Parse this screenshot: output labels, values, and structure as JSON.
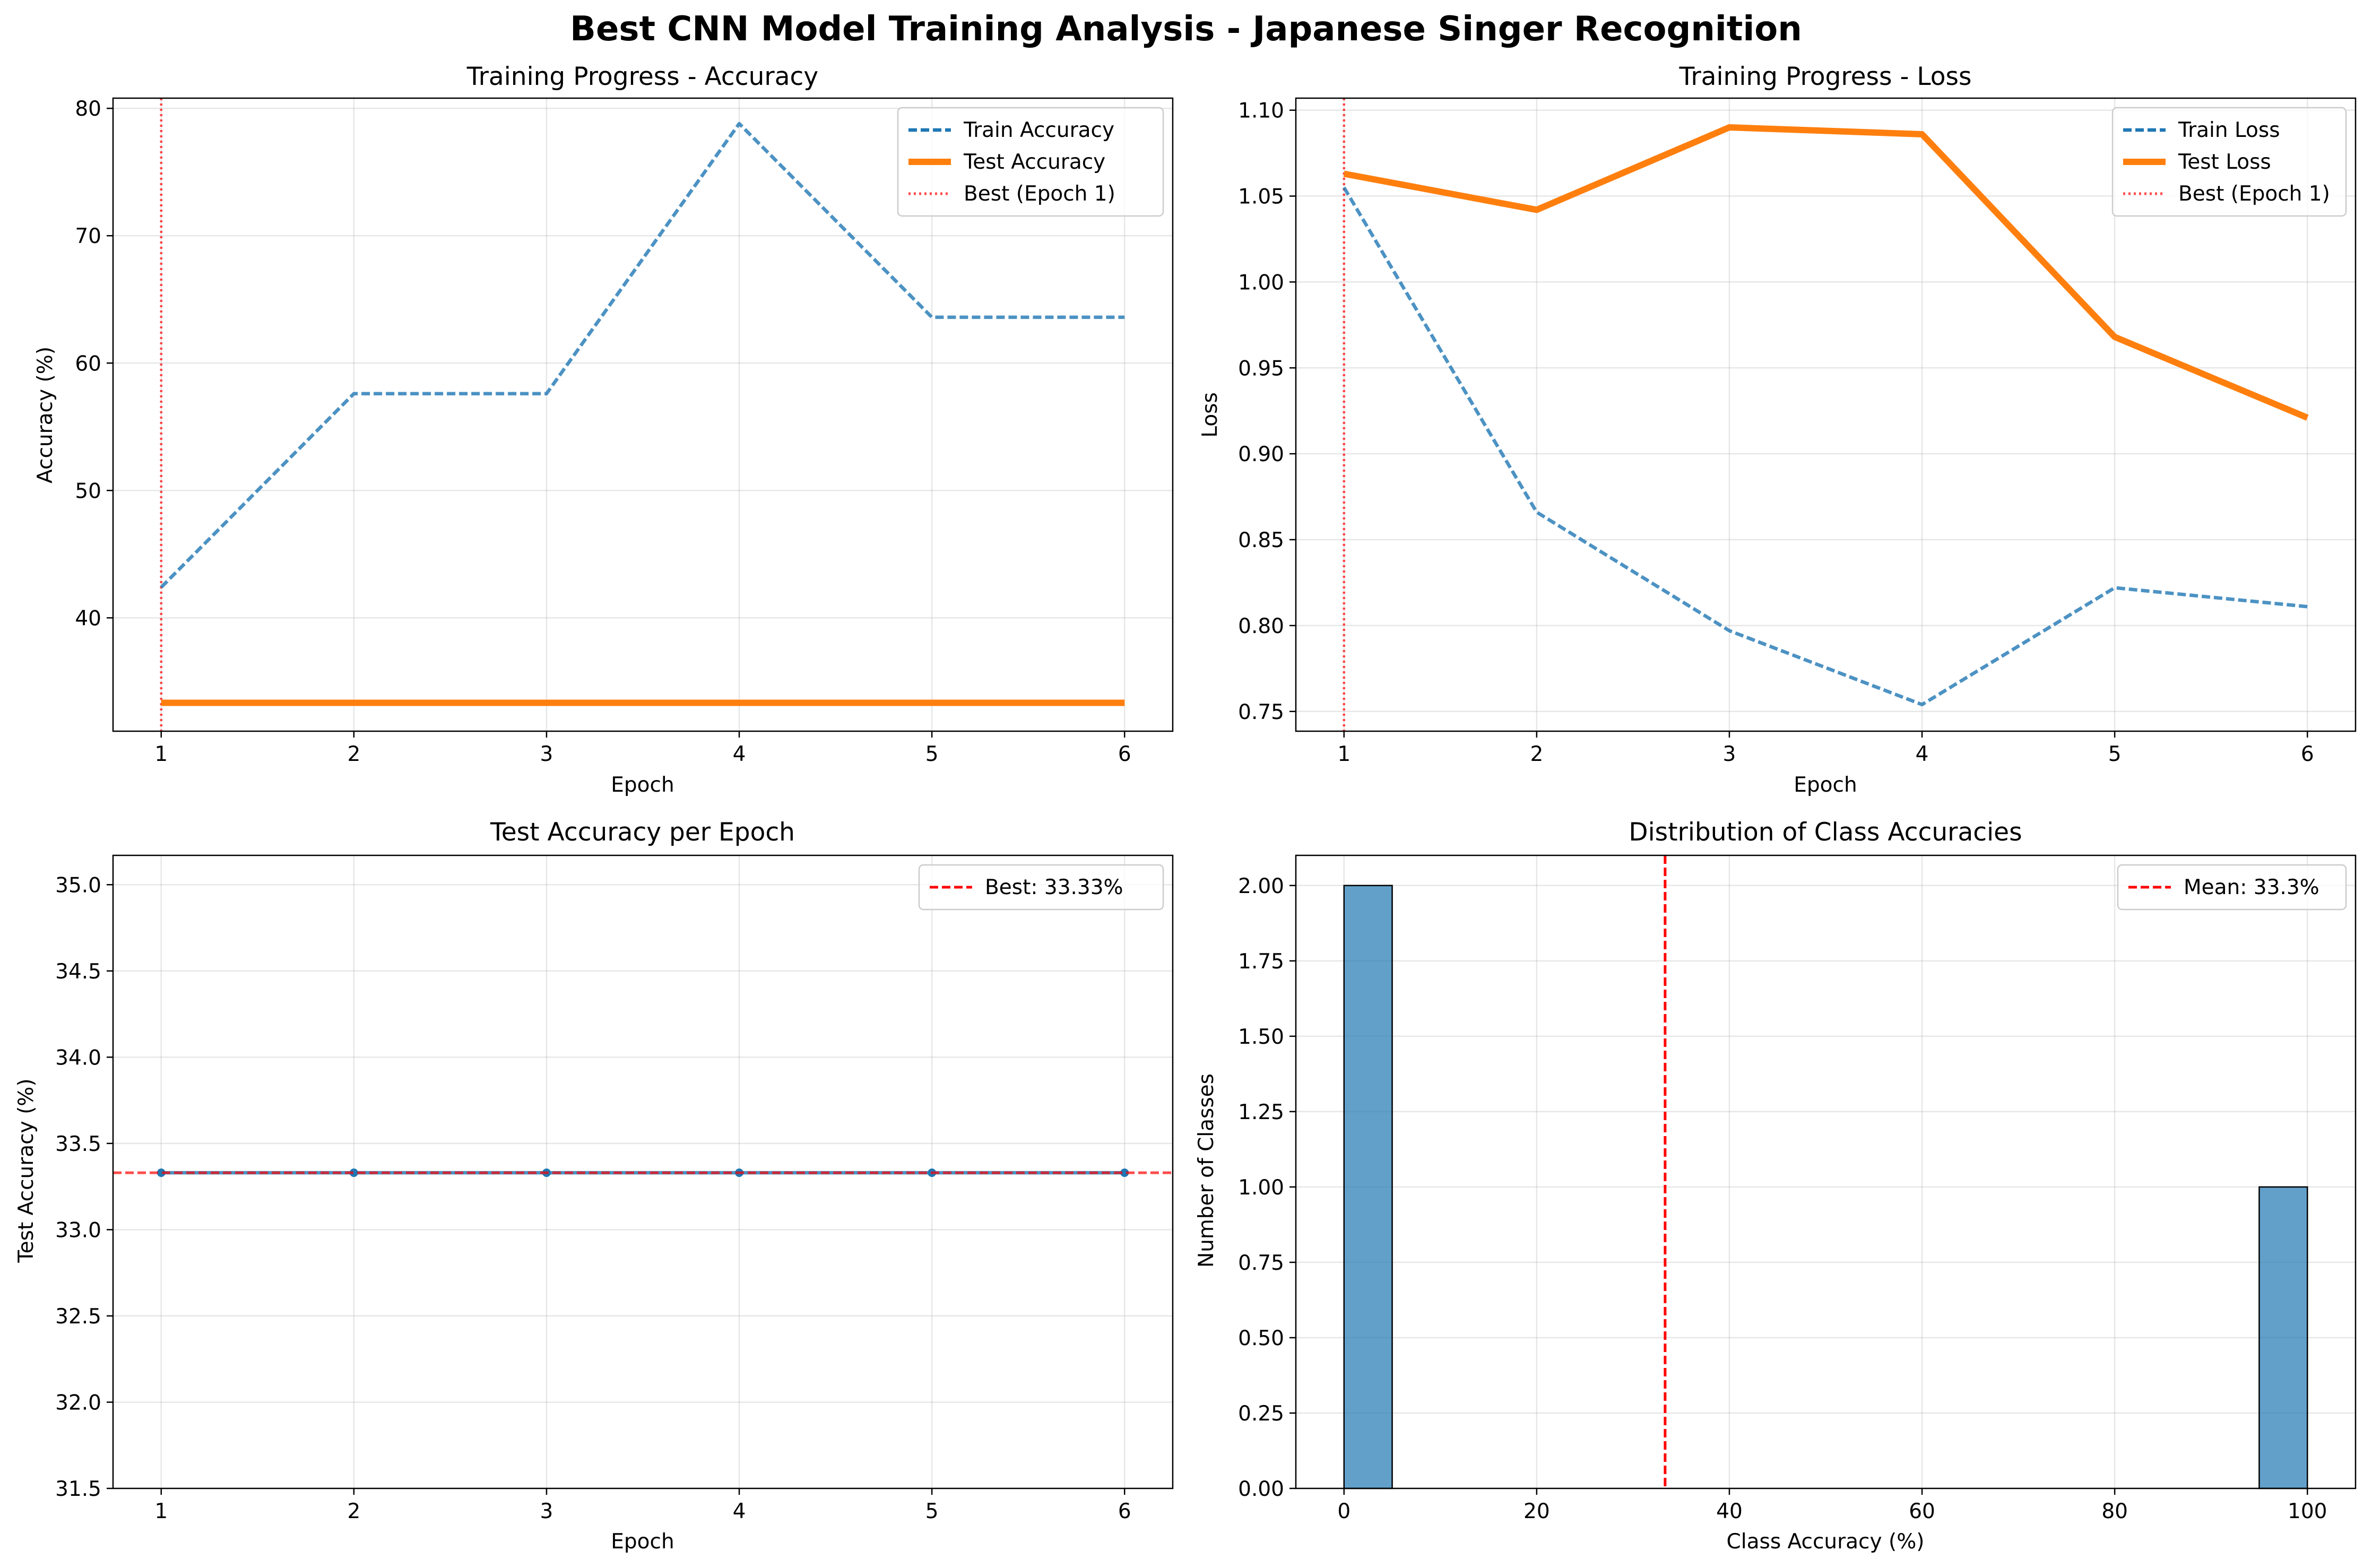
{
  "suptitle": "Best CNN Model Training Analysis - Japanese Singer Recognition",
  "colors": {
    "blue": "#1f77b4",
    "orange": "#ff7f0e",
    "red": "#ff0000",
    "grid": "#b0b0b0"
  },
  "chart_data": [
    {
      "type": "line",
      "title": "Training Progress - Accuracy",
      "xlabel": "Epoch",
      "ylabel": "Accuracy (%)",
      "x": [
        1,
        2,
        3,
        4,
        5,
        6
      ],
      "xlim": [
        0.75,
        6.25
      ],
      "ylim": [
        31.1,
        80.8
      ],
      "xticks": [
        1,
        2,
        3,
        4,
        5,
        6
      ],
      "yticks": [
        40,
        50,
        60,
        70,
        80
      ],
      "series": [
        {
          "name": "Train Accuracy",
          "values": [
            42.4,
            57.6,
            57.6,
            78.8,
            63.6,
            63.6
          ],
          "style": "dashed",
          "color": "#1f77b4"
        },
        {
          "name": "Test Accuracy",
          "values": [
            33.33,
            33.33,
            33.33,
            33.33,
            33.33,
            33.33
          ],
          "style": "solid-thick",
          "color": "#ff7f0e"
        }
      ],
      "vline": {
        "name": "Best (Epoch 1)",
        "x": 1,
        "style": "dotted",
        "color": "#ff0000"
      },
      "grid": true,
      "legend": "upper right"
    },
    {
      "type": "line",
      "title": "Training Progress - Loss",
      "xlabel": "Epoch",
      "ylabel": "Loss",
      "x": [
        1,
        2,
        3,
        4,
        5,
        6
      ],
      "xlim": [
        0.75,
        6.25
      ],
      "ylim": [
        0.7385,
        1.107
      ],
      "xticks": [
        1,
        2,
        3,
        4,
        5,
        6
      ],
      "yticks": [
        0.75,
        0.8,
        0.85,
        0.9,
        0.95,
        1.0,
        1.05,
        1.1
      ],
      "ytick_labels": [
        "0.75",
        "0.80",
        "0.85",
        "0.90",
        "0.95",
        "1.00",
        "1.05",
        "1.10"
      ],
      "series": [
        {
          "name": "Train Loss",
          "values": [
            1.055,
            0.866,
            0.797,
            0.754,
            0.822,
            0.811
          ],
          "style": "dashed",
          "color": "#1f77b4"
        },
        {
          "name": "Test Loss",
          "values": [
            1.063,
            1.042,
            1.09,
            1.086,
            0.968,
            0.921
          ],
          "style": "solid-thick",
          "color": "#ff7f0e"
        }
      ],
      "vline": {
        "name": "Best (Epoch 1)",
        "x": 1,
        "style": "dotted",
        "color": "#ff0000"
      },
      "grid": true,
      "legend": "upper right"
    },
    {
      "type": "line",
      "title": "Test Accuracy per Epoch",
      "xlabel": "Epoch",
      "ylabel": "Test Accuracy (%)",
      "x": [
        1,
        2,
        3,
        4,
        5,
        6
      ],
      "xlim": [
        0.75,
        6.25
      ],
      "ylim": [
        31.5,
        35.17
      ],
      "xticks": [
        1,
        2,
        3,
        4,
        5,
        6
      ],
      "yticks": [
        31.5,
        32.0,
        32.5,
        33.0,
        33.5,
        34.0,
        34.5,
        35.0
      ],
      "ytick_labels": [
        "31.5",
        "32.0",
        "32.5",
        "33.0",
        "33.5",
        "34.0",
        "34.5",
        "35.0"
      ],
      "series": [
        {
          "name": "",
          "values": [
            33.33,
            33.33,
            33.33,
            33.33,
            33.33,
            33.33
          ],
          "style": "solid-markers",
          "color": "#1f77b4"
        }
      ],
      "hline": {
        "name": "Best: 33.33%",
        "y": 33.33,
        "style": "dashed",
        "color": "#ff0000"
      },
      "grid": true,
      "legend": "upper right"
    },
    {
      "type": "bar",
      "title": "Distribution of Class Accuracies",
      "xlabel": "Class Accuracy (%)",
      "ylabel": "Number of Classes",
      "xlim": [
        -5,
        105
      ],
      "ylim": [
        0,
        2.1
      ],
      "xticks": [
        0,
        20,
        40,
        60,
        80,
        100
      ],
      "yticks": [
        0.0,
        0.25,
        0.5,
        0.75,
        1.0,
        1.25,
        1.5,
        1.75,
        2.0
      ],
      "ytick_labels": [
        "0.00",
        "0.25",
        "0.50",
        "0.75",
        "1.00",
        "1.25",
        "1.50",
        "1.75",
        "2.00"
      ],
      "bins": [
        {
          "start": 0,
          "end": 5,
          "count": 2
        },
        {
          "start": 95,
          "end": 100,
          "count": 1
        }
      ],
      "vline": {
        "name": "Mean: 33.3%",
        "x": 33.33,
        "style": "dashed",
        "color": "#ff0000"
      },
      "grid": true,
      "legend": "upper right"
    }
  ]
}
